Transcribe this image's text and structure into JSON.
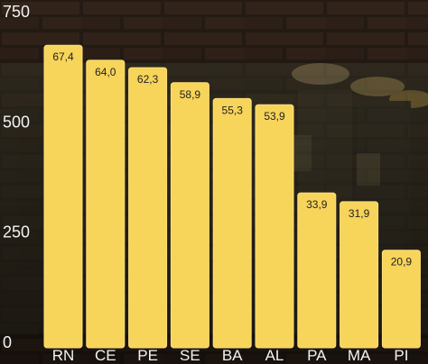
{
  "chart_data": {
    "type": "bar",
    "categories": [
      "RN",
      "CE",
      "PE",
      "SE",
      "BA",
      "AL",
      "PA",
      "MA",
      "PI"
    ],
    "values": [
      67.4,
      64.0,
      62.3,
      58.9,
      55.3,
      53.9,
      33.9,
      31.9,
      20.9
    ],
    "data_labels": [
      "67,4",
      "64,0",
      "62,3",
      "58,9",
      "55,3",
      "53,9",
      "33,9",
      "31,9",
      "20,9"
    ],
    "yticks": [
      0,
      250,
      500,
      750
    ],
    "ylim": [
      0,
      750
    ],
    "bar_color": "#f7d45a",
    "bar_edge_color": "#fde27a",
    "grid": false,
    "legend": false
  }
}
